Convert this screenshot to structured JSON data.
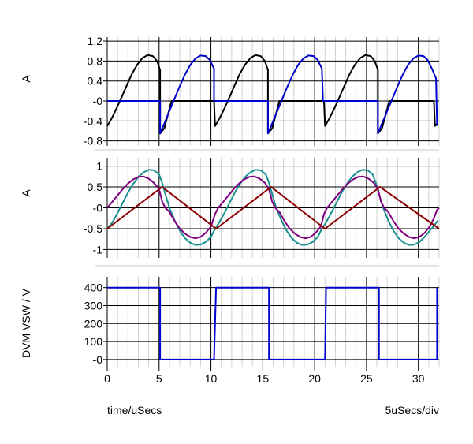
{
  "footer": {
    "time_label": "time/uSecs",
    "scale_label": "5uSecs/div"
  },
  "colors": {
    "black": "#000000",
    "blue": "#0000cc",
    "teal": "#1a8f8f",
    "purple": "#800080",
    "dark_red": "#8b0000"
  },
  "chart_data": [
    {
      "type": "line",
      "ylabel": "A",
      "xlim": [
        0,
        32
      ],
      "ylim": [
        -0.9,
        1.28
      ],
      "yticks": [
        1.2,
        0.8,
        0.4,
        0,
        -0.4,
        -0.8
      ],
      "ytick_labels": [
        "1.2",
        "0.8",
        "0.4",
        "-0",
        "-0.4",
        "-0.8"
      ],
      "grid": true,
      "series": [
        {
          "color": "#000000",
          "points": [
            [
              0,
              -0.5
            ],
            [
              0.4,
              -0.36
            ],
            [
              0.9,
              -0.15
            ],
            [
              1.4,
              0.08
            ],
            [
              1.9,
              0.32
            ],
            [
              2.4,
              0.55
            ],
            [
              2.9,
              0.73
            ],
            [
              3.4,
              0.86
            ],
            [
              3.9,
              0.92
            ],
            [
              4.4,
              0.9
            ],
            [
              4.8,
              0.8
            ],
            [
              5.1,
              0.62
            ],
            [
              5.1,
              -0.65
            ],
            [
              5.5,
              -0.55
            ],
            [
              6.2,
              0
            ],
            [
              10.3,
              0
            ],
            [
              10.4,
              -0.5
            ],
            [
              10.8,
              -0.36
            ],
            [
              11.3,
              -0.15
            ],
            [
              11.8,
              0.08
            ],
            [
              12.3,
              0.32
            ],
            [
              12.8,
              0.55
            ],
            [
              13.3,
              0.73
            ],
            [
              13.8,
              0.86
            ],
            [
              14.3,
              0.92
            ],
            [
              14.8,
              0.9
            ],
            [
              15.2,
              0.8
            ],
            [
              15.5,
              0.62
            ],
            [
              15.5,
              -0.65
            ],
            [
              15.9,
              -0.55
            ],
            [
              16.6,
              0
            ],
            [
              20.9,
              0
            ],
            [
              21.0,
              -0.5
            ],
            [
              21.4,
              -0.36
            ],
            [
              21.9,
              -0.15
            ],
            [
              22.4,
              0.08
            ],
            [
              22.9,
              0.32
            ],
            [
              23.4,
              0.55
            ],
            [
              23.9,
              0.73
            ],
            [
              24.4,
              0.86
            ],
            [
              24.9,
              0.92
            ],
            [
              25.4,
              0.9
            ],
            [
              25.8,
              0.8
            ],
            [
              26.1,
              0.62
            ],
            [
              26.1,
              -0.65
            ],
            [
              26.5,
              -0.55
            ],
            [
              27.2,
              0
            ],
            [
              31.5,
              0
            ],
            [
              31.6,
              -0.5
            ],
            [
              31.8,
              -0.45
            ]
          ]
        },
        {
          "color": "#0000cc",
          "points": [
            [
              0,
              0
            ],
            [
              5.1,
              0
            ],
            [
              5.1,
              -0.65
            ],
            [
              5.5,
              -0.45
            ],
            [
              6.0,
              -0.2
            ],
            [
              6.5,
              0.05
            ],
            [
              7.0,
              0.3
            ],
            [
              7.5,
              0.53
            ],
            [
              8.0,
              0.72
            ],
            [
              8.5,
              0.85
            ],
            [
              9.0,
              0.91
            ],
            [
              9.5,
              0.9
            ],
            [
              9.9,
              0.82
            ],
            [
              10.3,
              0.65
            ],
            [
              10.3,
              0
            ],
            [
              15.5,
              0
            ],
            [
              15.5,
              -0.65
            ],
            [
              15.9,
              -0.45
            ],
            [
              16.4,
              -0.2
            ],
            [
              16.9,
              0.05
            ],
            [
              17.4,
              0.3
            ],
            [
              17.9,
              0.53
            ],
            [
              18.4,
              0.72
            ],
            [
              18.9,
              0.85
            ],
            [
              19.4,
              0.91
            ],
            [
              19.9,
              0.9
            ],
            [
              20.3,
              0.82
            ],
            [
              20.7,
              0.65
            ],
            [
              20.8,
              0
            ],
            [
              26.1,
              0
            ],
            [
              26.1,
              -0.65
            ],
            [
              26.5,
              -0.45
            ],
            [
              27.0,
              -0.2
            ],
            [
              27.5,
              0.05
            ],
            [
              28.0,
              0.3
            ],
            [
              28.5,
              0.53
            ],
            [
              29.0,
              0.72
            ],
            [
              29.5,
              0.85
            ],
            [
              30.0,
              0.91
            ],
            [
              30.5,
              0.9
            ],
            [
              30.9,
              0.82
            ],
            [
              31.3,
              0.65
            ],
            [
              31.7,
              0.45
            ],
            [
              31.8,
              -0.5
            ]
          ]
        }
      ]
    },
    {
      "type": "line",
      "ylabel": "A",
      "xlim": [
        0,
        32
      ],
      "ylim": [
        -1.2,
        1.2
      ],
      "yticks": [
        1,
        0.5,
        0,
        -0.5,
        -1
      ],
      "ytick_labels": [
        "1",
        "0.5",
        "-0",
        "-0.5",
        "-1"
      ],
      "grid": true,
      "series": [
        {
          "color": "#1a8f8f",
          "points": [
            [
              0,
              -0.5
            ],
            [
              0.5,
              -0.35
            ],
            [
              1,
              -0.12
            ],
            [
              1.5,
              0.12
            ],
            [
              2,
              0.36
            ],
            [
              2.5,
              0.57
            ],
            [
              3,
              0.74
            ],
            [
              3.5,
              0.85
            ],
            [
              4,
              0.91
            ],
            [
              4.5,
              0.9
            ],
            [
              5,
              0.8
            ],
            [
              5.3,
              0.6
            ],
            [
              5.6,
              0.33
            ],
            [
              6,
              0
            ],
            [
              6.5,
              -0.3
            ],
            [
              7,
              -0.55
            ],
            [
              7.5,
              -0.73
            ],
            [
              8,
              -0.84
            ],
            [
              8.5,
              -0.89
            ],
            [
              9,
              -0.88
            ],
            [
              9.5,
              -0.82
            ],
            [
              10,
              -0.7
            ],
            [
              10.3,
              -0.55
            ],
            [
              10.8,
              -0.35
            ],
            [
              11.3,
              -0.12
            ],
            [
              11.8,
              0.12
            ],
            [
              12.3,
              0.36
            ],
            [
              12.8,
              0.57
            ],
            [
              13.3,
              0.74
            ],
            [
              13.8,
              0.85
            ],
            [
              14.3,
              0.91
            ],
            [
              14.8,
              0.9
            ],
            [
              15.3,
              0.8
            ],
            [
              15.6,
              0.6
            ],
            [
              15.9,
              0.33
            ],
            [
              16.3,
              0
            ],
            [
              16.8,
              -0.3
            ],
            [
              17.3,
              -0.55
            ],
            [
              17.8,
              -0.73
            ],
            [
              18.3,
              -0.84
            ],
            [
              18.8,
              -0.89
            ],
            [
              19.3,
              -0.88
            ],
            [
              19.8,
              -0.82
            ],
            [
              20.3,
              -0.7
            ],
            [
              20.7,
              -0.5
            ],
            [
              21.1,
              -0.35
            ],
            [
              21.6,
              -0.12
            ],
            [
              22.1,
              0.12
            ],
            [
              22.6,
              0.36
            ],
            [
              23.1,
              0.57
            ],
            [
              23.6,
              0.74
            ],
            [
              24.1,
              0.85
            ],
            [
              24.6,
              0.91
            ],
            [
              25.1,
              0.9
            ],
            [
              25.6,
              0.8
            ],
            [
              25.9,
              0.6
            ],
            [
              26.2,
              0.33
            ],
            [
              26.6,
              0
            ],
            [
              27.1,
              -0.3
            ],
            [
              27.6,
              -0.55
            ],
            [
              28.1,
              -0.73
            ],
            [
              28.6,
              -0.84
            ],
            [
              29.1,
              -0.89
            ],
            [
              29.6,
              -0.88
            ],
            [
              30.1,
              -0.82
            ],
            [
              30.6,
              -0.7
            ],
            [
              31.1,
              -0.55
            ],
            [
              31.6,
              -0.4
            ],
            [
              31.9,
              -0.3
            ]
          ]
        },
        {
          "color": "#800080",
          "points": [
            [
              0,
              0
            ],
            [
              0.5,
              0.15
            ],
            [
              1,
              0.3
            ],
            [
              1.5,
              0.45
            ],
            [
              2,
              0.58
            ],
            [
              2.5,
              0.68
            ],
            [
              3,
              0.74
            ],
            [
              3.5,
              0.75
            ],
            [
              4,
              0.7
            ],
            [
              4.5,
              0.6
            ],
            [
              5,
              0.45
            ],
            [
              5.3,
              0.15
            ],
            [
              5.6,
              0
            ],
            [
              6,
              -0.1
            ],
            [
              6.5,
              -0.32
            ],
            [
              7,
              -0.5
            ],
            [
              7.5,
              -0.62
            ],
            [
              8,
              -0.7
            ],
            [
              8.5,
              -0.73
            ],
            [
              9,
              -0.7
            ],
            [
              9.5,
              -0.6
            ],
            [
              10,
              -0.45
            ],
            [
              10.4,
              -0.15
            ],
            [
              10.7,
              0
            ],
            [
              11.2,
              0.15
            ],
            [
              11.7,
              0.3
            ],
            [
              12.2,
              0.45
            ],
            [
              12.7,
              0.58
            ],
            [
              13.2,
              0.68
            ],
            [
              13.7,
              0.74
            ],
            [
              14.2,
              0.75
            ],
            [
              14.7,
              0.7
            ],
            [
              15.2,
              0.6
            ],
            [
              15.6,
              0.45
            ],
            [
              15.9,
              0.15
            ],
            [
              16.2,
              0
            ],
            [
              16.6,
              -0.1
            ],
            [
              17.1,
              -0.32
            ],
            [
              17.6,
              -0.5
            ],
            [
              18.1,
              -0.62
            ],
            [
              18.6,
              -0.7
            ],
            [
              19.1,
              -0.73
            ],
            [
              19.6,
              -0.7
            ],
            [
              20.1,
              -0.6
            ],
            [
              20.6,
              -0.45
            ],
            [
              20.9,
              -0.15
            ],
            [
              21.2,
              0
            ],
            [
              21.7,
              0.15
            ],
            [
              22.2,
              0.3
            ],
            [
              22.7,
              0.45
            ],
            [
              23.2,
              0.58
            ],
            [
              23.7,
              0.68
            ],
            [
              24.2,
              0.74
            ],
            [
              24.7,
              0.75
            ],
            [
              25.2,
              0.7
            ],
            [
              25.7,
              0.6
            ],
            [
              26.1,
              0.45
            ],
            [
              26.4,
              0.15
            ],
            [
              26.7,
              0
            ],
            [
              27.1,
              -0.1
            ],
            [
              27.6,
              -0.32
            ],
            [
              28.1,
              -0.5
            ],
            [
              28.6,
              -0.62
            ],
            [
              29.1,
              -0.7
            ],
            [
              29.6,
              -0.73
            ],
            [
              30.1,
              -0.7
            ],
            [
              30.6,
              -0.6
            ],
            [
              31.1,
              -0.45
            ],
            [
              31.5,
              -0.25
            ],
            [
              31.8,
              -0.05
            ],
            [
              32,
              0
            ]
          ]
        },
        {
          "color": "#8b0000",
          "points": [
            [
              0,
              -0.5
            ],
            [
              5.3,
              0.5
            ],
            [
              10.5,
              -0.5
            ],
            [
              15.8,
              0.5
            ],
            [
              21,
              -0.5
            ],
            [
              26.3,
              0.5
            ],
            [
              32,
              -0.5
            ]
          ]
        }
      ]
    },
    {
      "type": "line",
      "ylabel": "DVM VSW / V",
      "xlim": [
        0,
        32
      ],
      "ylim": [
        -40,
        460
      ],
      "yticks": [
        400,
        300,
        200,
        100,
        0
      ],
      "ytick_labels": [
        "400",
        "300",
        "200",
        "100",
        "-0"
      ],
      "xticks": [
        0,
        5,
        10,
        15,
        20,
        25,
        30
      ],
      "xtick_labels": [
        "0",
        "5",
        "10",
        "15",
        "20",
        "25",
        "30"
      ],
      "grid": true,
      "series": [
        {
          "color": "#0000cc",
          "points": [
            [
              0,
              400
            ],
            [
              5.1,
              400
            ],
            [
              5.1,
              0
            ],
            [
              10.3,
              0
            ],
            [
              10.5,
              400
            ],
            [
              15.6,
              400
            ],
            [
              15.6,
              0
            ],
            [
              21.0,
              0
            ],
            [
              21.1,
              400
            ],
            [
              26.2,
              400
            ],
            [
              26.2,
              0
            ],
            [
              31.8,
              0
            ],
            [
              31.8,
              400
            ]
          ]
        }
      ]
    }
  ]
}
